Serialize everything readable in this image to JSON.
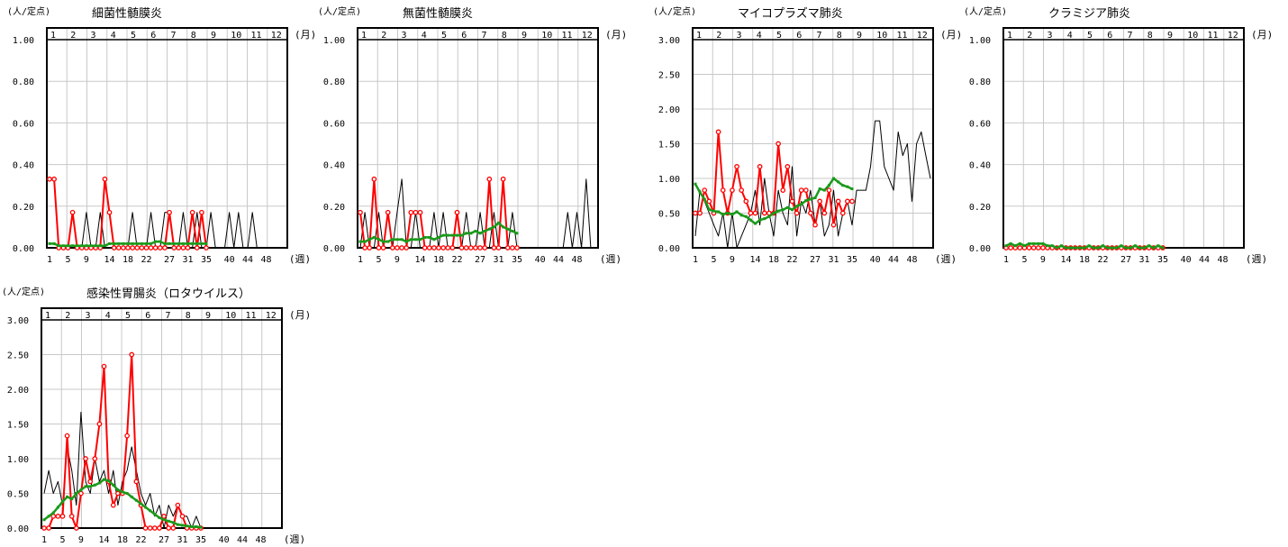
{
  "labels": {
    "unit": "(人/定点)",
    "month": "(月)",
    "week": "(週)"
  },
  "chart_data": [
    {
      "type": "line",
      "title": "細菌性髄膜炎",
      "ylim": [
        0,
        1.0
      ],
      "yticks": [
        "0.00",
        "0.20",
        "0.40",
        "0.60",
        "0.80",
        "1.00"
      ],
      "month_labels": [
        "1",
        "2",
        "3",
        "4",
        "5",
        "6",
        "7",
        "8",
        "9",
        "10",
        "11",
        "12"
      ],
      "week_ticks": [
        "1",
        "5",
        "9",
        "14",
        "18",
        "22",
        "27",
        "31",
        "35",
        "40",
        "44",
        "48"
      ],
      "grid": true,
      "series": [
        {
          "role": "previous-year",
          "color": "#000000",
          "values": [
            0,
            0,
            0,
            0,
            0,
            0,
            0,
            0,
            0.17,
            0,
            0,
            0.17,
            0,
            0,
            0,
            0,
            0,
            0,
            0.17,
            0,
            0,
            0,
            0.17,
            0,
            0,
            0.17,
            0.17,
            0,
            0,
            0.17,
            0,
            0,
            0.17,
            0,
            0,
            0.17,
            0,
            0,
            0,
            0.17,
            0,
            0.17,
            0,
            0,
            0.17,
            0,
            0,
            0,
            0,
            0,
            0,
            0
          ]
        },
        {
          "role": "current-year",
          "color": "#ff0000",
          "values": [
            0.33,
            0.33,
            0,
            0,
            0,
            0.17,
            0,
            0,
            0,
            0,
            0,
            0,
            0.33,
            0.17,
            0,
            0,
            0,
            0,
            0,
            0,
            0,
            0,
            0,
            0,
            0,
            0,
            0.17,
            0,
            0,
            0,
            0,
            0.17,
            0,
            0.17,
            0
          ]
        },
        {
          "role": "average",
          "color": "#1a9a1a",
          "values": [
            0.02,
            0.02,
            0.01,
            0.01,
            0.01,
            0.01,
            0.01,
            0.01,
            0.01,
            0.01,
            0.01,
            0.01,
            0.01,
            0.02,
            0.02,
            0.02,
            0.02,
            0.02,
            0.02,
            0.02,
            0.02,
            0.02,
            0.02,
            0.03,
            0.03,
            0.02,
            0.02,
            0.02,
            0.02,
            0.02,
            0.02,
            0.02,
            0.02,
            0.02,
            0.02
          ]
        }
      ]
    },
    {
      "type": "line",
      "title": "無菌性髄膜炎",
      "ylim": [
        0,
        1.0
      ],
      "yticks": [
        "0.00",
        "0.20",
        "0.40",
        "0.60",
        "0.80",
        "1.00"
      ],
      "month_labels": [
        "1",
        "2",
        "3",
        "4",
        "5",
        "6",
        "7",
        "8",
        "9",
        "10",
        "11",
        "12"
      ],
      "week_ticks": [
        "1",
        "5",
        "9",
        "14",
        "18",
        "22",
        "27",
        "31",
        "35",
        "40",
        "44",
        "48"
      ],
      "grid": true,
      "series": [
        {
          "role": "previous-year",
          "color": "#000000",
          "values": [
            0,
            0.17,
            0,
            0,
            0.17,
            0,
            0,
            0,
            0.17,
            0.33,
            0,
            0,
            0.17,
            0,
            0,
            0,
            0.17,
            0,
            0.17,
            0,
            0,
            0.17,
            0,
            0.17,
            0,
            0,
            0.17,
            0,
            0,
            0.17,
            0,
            0,
            0,
            0.17,
            0,
            0,
            0,
            0,
            0,
            0,
            0,
            0,
            0,
            0,
            0,
            0.17,
            0,
            0.17,
            0,
            0.33,
            0,
            0
          ]
        },
        {
          "role": "current-year",
          "color": "#ff0000",
          "values": [
            0.17,
            0,
            0,
            0.33,
            0,
            0,
            0.17,
            0,
            0,
            0,
            0,
            0.17,
            0.17,
            0.17,
            0,
            0,
            0,
            0,
            0,
            0,
            0,
            0.17,
            0,
            0,
            0,
            0,
            0,
            0,
            0.33,
            0,
            0,
            0.33,
            0,
            0,
            0
          ]
        },
        {
          "role": "average",
          "color": "#1a9a1a",
          "values": [
            0.03,
            0.03,
            0.04,
            0.05,
            0.04,
            0.03,
            0.03,
            0.04,
            0.04,
            0.04,
            0.03,
            0.04,
            0.04,
            0.04,
            0.05,
            0.05,
            0.04,
            0.05,
            0.06,
            0.06,
            0.06,
            0.06,
            0.06,
            0.07,
            0.07,
            0.08,
            0.07,
            0.08,
            0.09,
            0.1,
            0.12,
            0.1,
            0.09,
            0.08,
            0.07
          ]
        }
      ]
    },
    {
      "type": "line",
      "title": "マイコプラズマ肺炎",
      "ylim": [
        0,
        3.0
      ],
      "yticks": [
        "0.00",
        "0.50",
        "1.00",
        "1.50",
        "2.00",
        "2.50",
        "3.00"
      ],
      "month_labels": [
        "1",
        "2",
        "3",
        "4",
        "5",
        "6",
        "7",
        "8",
        "9",
        "10",
        "11",
        "12"
      ],
      "week_ticks": [
        "1",
        "5",
        "9",
        "14",
        "18",
        "22",
        "27",
        "31",
        "35",
        "40",
        "44",
        "48"
      ],
      "grid": true,
      "series": [
        {
          "role": "previous-year",
          "color": "#000000",
          "values": [
            0.17,
            0.83,
            0.67,
            0.5,
            0.33,
            0.17,
            0.5,
            0,
            0.5,
            0,
            0.17,
            0.33,
            0.5,
            0.83,
            0.33,
            1.0,
            0.5,
            0.17,
            0.83,
            0.5,
            0.33,
            1.17,
            0.17,
            0.67,
            0.5,
            0.83,
            0.33,
            0.67,
            0.17,
            0.33,
            0.83,
            0.17,
            0.5,
            0.67,
            0.33,
            0.83,
            0.83,
            0.83,
            1.17,
            1.83,
            1.83,
            1.17,
            1.0,
            0.83,
            1.67,
            1.33,
            1.5,
            0.67,
            1.5,
            1.67,
            1.33,
            1.0
          ]
        },
        {
          "role": "current-year",
          "color": "#ff0000",
          "values": [
            0.5,
            0.5,
            0.83,
            0.67,
            0.5,
            1.67,
            0.83,
            0.5,
            0.83,
            1.17,
            0.83,
            0.67,
            0.5,
            0.5,
            1.17,
            0.5,
            0.5,
            0.5,
            1.5,
            0.83,
            1.17,
            0.67,
            0.5,
            0.83,
            0.83,
            0.5,
            0.33,
            0.67,
            0.5,
            0.83,
            0.33,
            0.67,
            0.5,
            0.67,
            0.67
          ]
        },
        {
          "role": "average",
          "color": "#1a9a1a",
          "values": [
            0.92,
            0.8,
            0.7,
            0.55,
            0.53,
            0.52,
            0.48,
            0.5,
            0.48,
            0.52,
            0.47,
            0.45,
            0.4,
            0.35,
            0.4,
            0.42,
            0.45,
            0.5,
            0.53,
            0.55,
            0.58,
            0.55,
            0.6,
            0.63,
            0.68,
            0.7,
            0.72,
            0.85,
            0.83,
            0.9,
            1.0,
            0.95,
            0.9,
            0.88,
            0.85
          ]
        }
      ]
    },
    {
      "type": "line",
      "title": "クラミジア肺炎",
      "ylim": [
        0,
        1.0
      ],
      "yticks": [
        "0.00",
        "0.20",
        "0.40",
        "0.60",
        "0.80",
        "1.00"
      ],
      "month_labels": [
        "1",
        "2",
        "3",
        "4",
        "5",
        "6",
        "7",
        "8",
        "9",
        "10",
        "11",
        "12"
      ],
      "week_ticks": [
        "1",
        "5",
        "9",
        "14",
        "18",
        "22",
        "27",
        "31",
        "35",
        "40",
        "44",
        "48"
      ],
      "grid": true,
      "series": [
        {
          "role": "previous-year",
          "color": "#000000",
          "values": [
            0,
            0,
            0,
            0,
            0,
            0,
            0,
            0,
            0,
            0,
            0,
            0,
            0,
            0,
            0,
            0,
            0,
            0,
            0,
            0,
            0,
            0,
            0,
            0,
            0,
            0,
            0,
            0,
            0,
            0,
            0,
            0,
            0,
            0,
            0,
            0,
            0,
            0,
            0,
            0,
            0,
            0,
            0,
            0,
            0,
            0,
            0,
            0,
            0,
            0,
            0,
            0
          ]
        },
        {
          "role": "current-year",
          "color": "#ff0000",
          "values": [
            0,
            0,
            0,
            0,
            0,
            0,
            0,
            0,
            0,
            0,
            0,
            0,
            0,
            0,
            0,
            0,
            0,
            0,
            0,
            0,
            0,
            0,
            0,
            0,
            0,
            0,
            0,
            0,
            0,
            0,
            0,
            0,
            0,
            0,
            0
          ]
        },
        {
          "role": "average",
          "color": "#1a9a1a",
          "values": [
            0.01,
            0.02,
            0.01,
            0.02,
            0.01,
            0.02,
            0.02,
            0.02,
            0.02,
            0.01,
            0.01,
            0,
            0.01,
            0,
            0,
            0,
            0,
            0,
            0.01,
            0,
            0,
            0.01,
            0,
            0,
            0,
            0.01,
            0,
            0,
            0.01,
            0,
            0,
            0.01,
            0,
            0.01,
            0
          ]
        }
      ]
    },
    {
      "type": "line",
      "title": "感染性胃腸炎（ロタウイルス）",
      "ylim": [
        0,
        3.0
      ],
      "yticks": [
        "0.00",
        "0.50",
        "1.00",
        "1.50",
        "2.00",
        "2.50",
        "3.00"
      ],
      "month_labels": [
        "1",
        "2",
        "3",
        "4",
        "5",
        "6",
        "7",
        "8",
        "9",
        "10",
        "11",
        "12"
      ],
      "week_ticks": [
        "1",
        "5",
        "9",
        "14",
        "18",
        "22",
        "27",
        "31",
        "35",
        "40",
        "44",
        "48"
      ],
      "grid": true,
      "series": [
        {
          "role": "previous-year",
          "color": "#000000",
          "values": [
            0.5,
            0.83,
            0.5,
            0.67,
            0.33,
            1.17,
            0.83,
            0.33,
            1.67,
            0.67,
            0.5,
            1.0,
            0.67,
            0.83,
            0.5,
            0.83,
            0.33,
            0.67,
            0.83,
            1.17,
            0.83,
            0.5,
            0.33,
            0.5,
            0.17,
            0.33,
            0,
            0.33,
            0.17,
            0.33,
            0.17,
            0.17,
            0,
            0.17,
            0,
            0,
            0,
            0,
            0,
            0,
            0,
            0,
            0,
            0,
            0,
            0,
            0,
            0,
            0,
            0,
            0,
            0
          ]
        },
        {
          "role": "current-year",
          "color": "#ff0000",
          "values": [
            0,
            0,
            0.17,
            0.17,
            0.17,
            1.33,
            0.17,
            0,
            0.5,
            1.0,
            0.67,
            1.0,
            1.5,
            2.33,
            0.67,
            0.33,
            0.5,
            0.5,
            1.33,
            2.5,
            0.67,
            0.33,
            0,
            0,
            0,
            0,
            0.17,
            0,
            0,
            0.33,
            0.17,
            0,
            0,
            0,
            0
          ]
        },
        {
          "role": "average",
          "color": "#1a9a1a",
          "values": [
            0.12,
            0.17,
            0.22,
            0.3,
            0.38,
            0.45,
            0.42,
            0.5,
            0.55,
            0.6,
            0.6,
            0.62,
            0.65,
            0.7,
            0.68,
            0.62,
            0.55,
            0.52,
            0.5,
            0.45,
            0.4,
            0.35,
            0.3,
            0.25,
            0.2,
            0.15,
            0.12,
            0.1,
            0.08,
            0.05,
            0.04,
            0.03,
            0.02,
            0.02,
            0.01
          ]
        }
      ]
    }
  ]
}
